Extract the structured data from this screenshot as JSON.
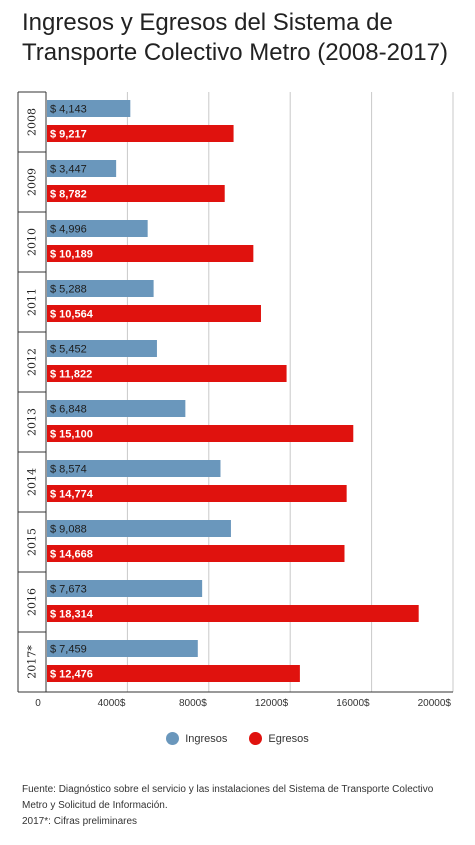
{
  "title": "Ingresos y Egresos del Sistema de Transporte Colectivo Metro (2008-2017)",
  "colors": {
    "ingresos": "#6a97bc",
    "egresos": "#e0120e",
    "grid": "#c9c9c9",
    "axis": "#333333"
  },
  "chart_data": {
    "type": "bar",
    "orientation": "horizontal",
    "categories": [
      "2008",
      "2009",
      "2010",
      "2011",
      "2012",
      "2013",
      "2014",
      "2015",
      "2016",
      "2017*"
    ],
    "series": [
      {
        "name": "Ingresos",
        "values": [
          4143,
          3447,
          4996,
          5288,
          5452,
          6848,
          8574,
          9088,
          7673,
          7459
        ],
        "labels": [
          "$ 4,143",
          "$ 3,447",
          "$ 4,996",
          "$ 5,288",
          "$ 5,452",
          "$ 6,848",
          "$ 8,574",
          "$ 9,088",
          "$ 7,673",
          "$ 7,459"
        ]
      },
      {
        "name": "Egresos",
        "values": [
          9217,
          8782,
          10189,
          10564,
          11822,
          15100,
          14774,
          14668,
          18314,
          12476
        ],
        "labels": [
          "$ 9,217",
          "$ 8,782",
          "$ 10,189",
          "$ 10,564",
          "$ 11,822",
          "$ 15,100",
          "$ 14,774",
          "$ 14,668",
          "$ 18,314",
          "$ 12,476"
        ]
      }
    ],
    "xlim": [
      0,
      20000
    ],
    "x_ticks": [
      0,
      4000,
      8000,
      12000,
      16000,
      20000
    ],
    "x_tick_labels": [
      "0",
      "4000$",
      "8000$",
      "12000$",
      "16000$",
      "20000$"
    ],
    "grid": true,
    "legend": "bottom-center"
  },
  "footer": {
    "source": "Fuente:  Diagnóstico sobre el servicio y las instalaciones del Sistema de Transporte Colectivo Metro y Solicitud de Información.",
    "note": "2017*: Cifras preliminares"
  }
}
